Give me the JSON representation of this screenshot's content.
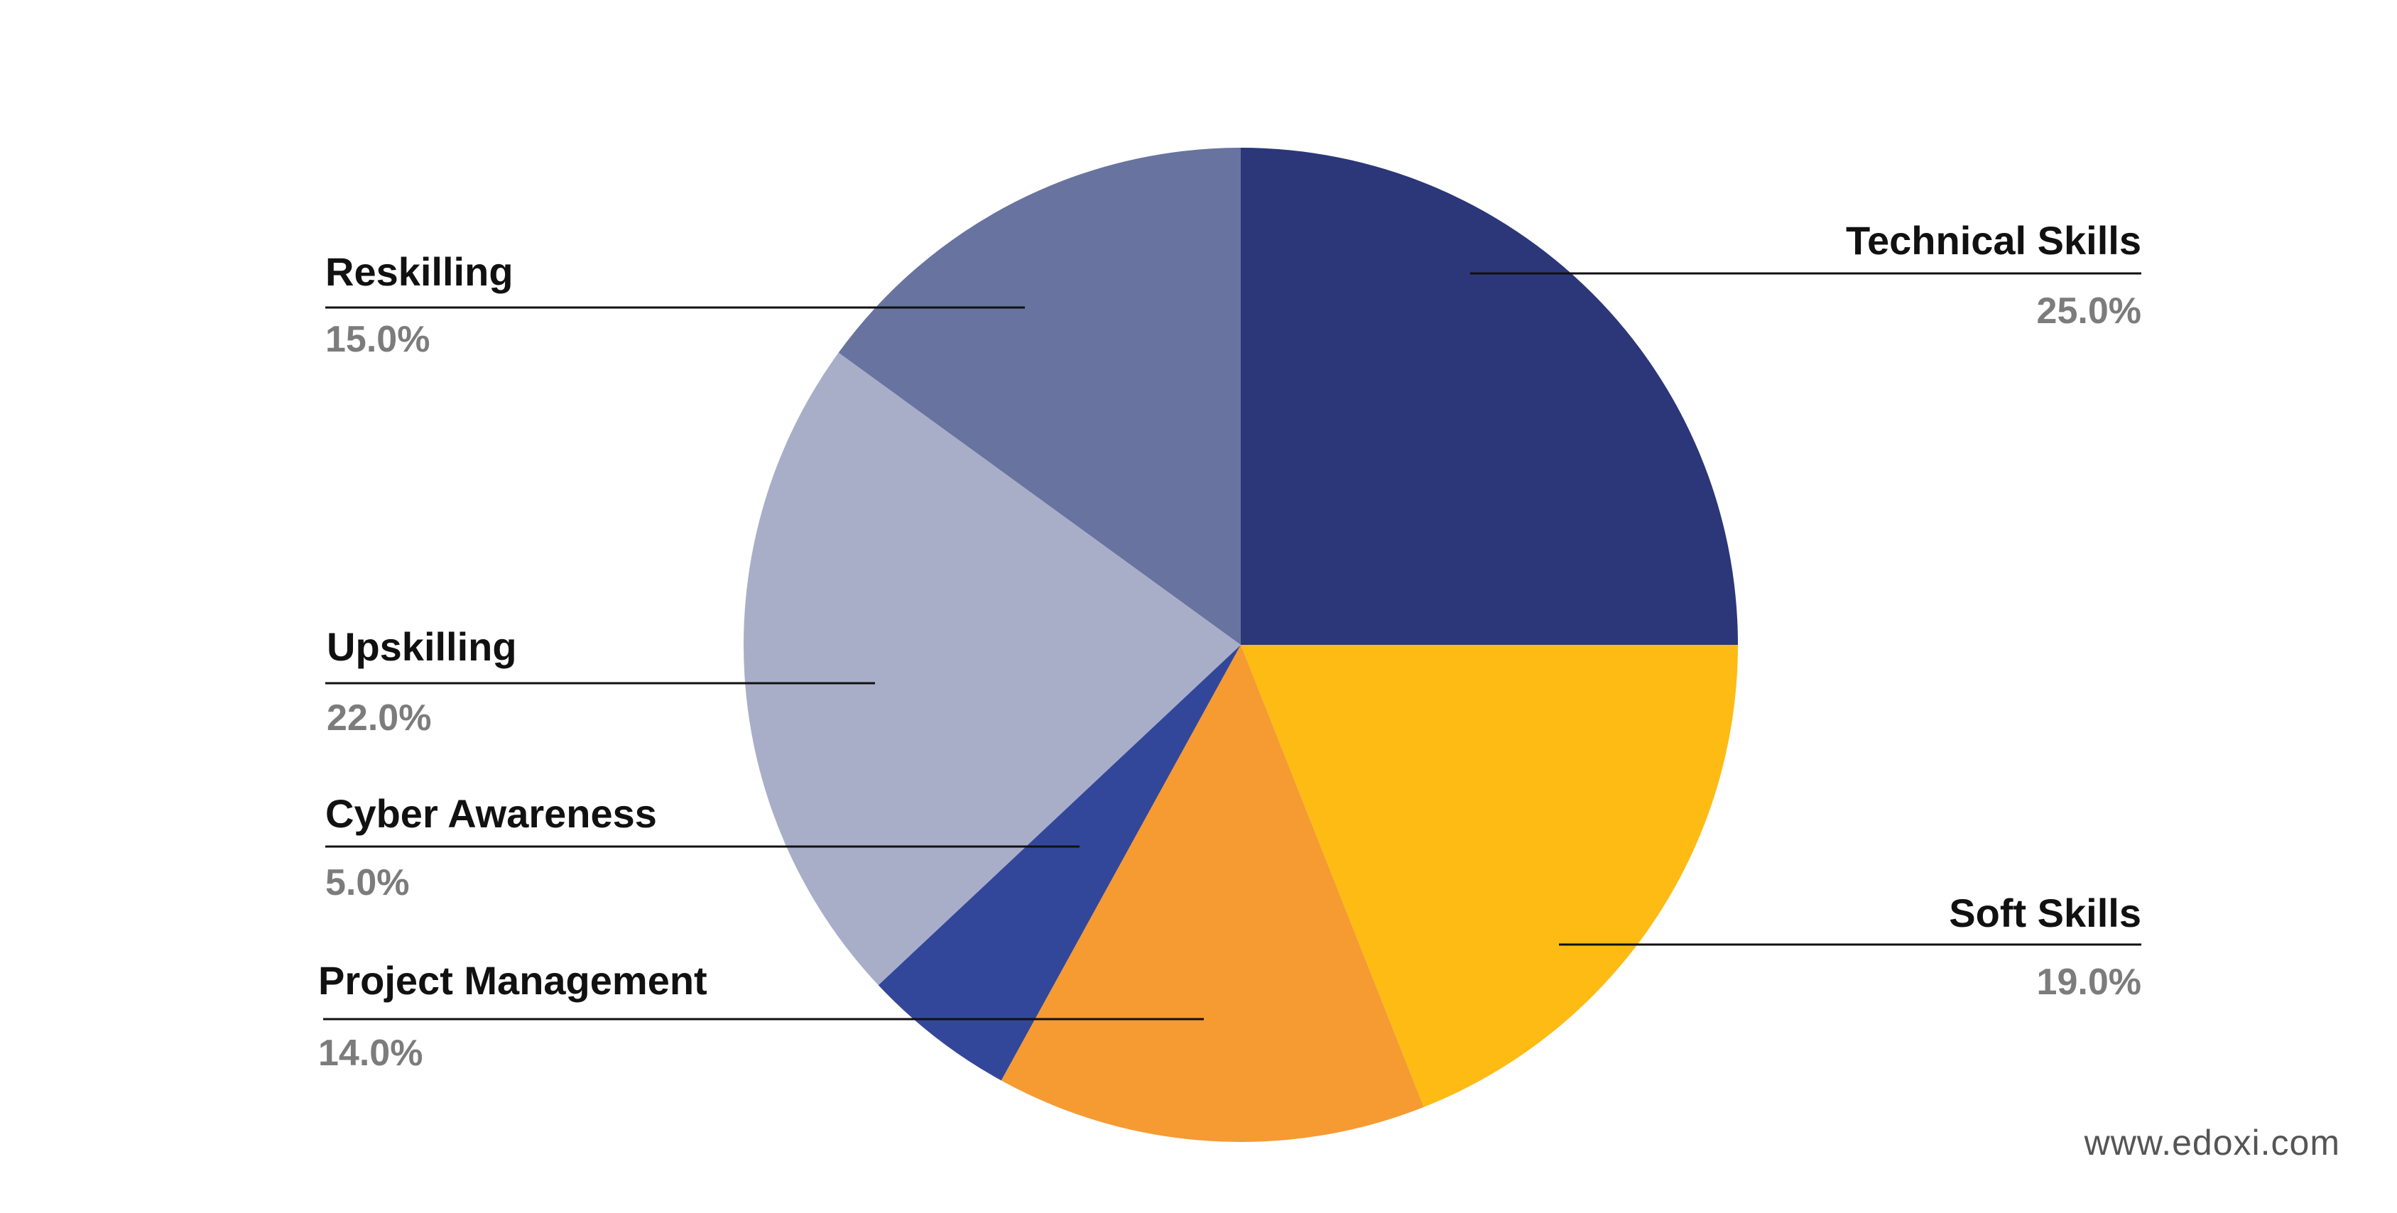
{
  "chart_data": {
    "type": "pie",
    "title": "",
    "slices": [
      {
        "label": "Technical Skills",
        "value": 25.0,
        "value_label": "25.0%",
        "color": "#2b3778"
      },
      {
        "label": "Soft Skills",
        "value": 19.0,
        "value_label": "19.0%",
        "color": "#fdbb14"
      },
      {
        "label": "Project Management",
        "value": 14.0,
        "value_label": "14.0%",
        "color": "#f69a32"
      },
      {
        "label": "Cyber Awareness",
        "value": 5.0,
        "value_label": "5.0%",
        "color": "#33479a"
      },
      {
        "label": "Upskilling",
        "value": 22.0,
        "value_label": "22.0%",
        "color": "#a9aec8"
      },
      {
        "label": "Reskilling",
        "value": 15.0,
        "value_label": "15.0%",
        "color": "#68739f"
      }
    ],
    "start_angle": "12 o'clock",
    "direction": "clockwise",
    "legend": "none"
  },
  "watermark": "www.edoxi.com"
}
